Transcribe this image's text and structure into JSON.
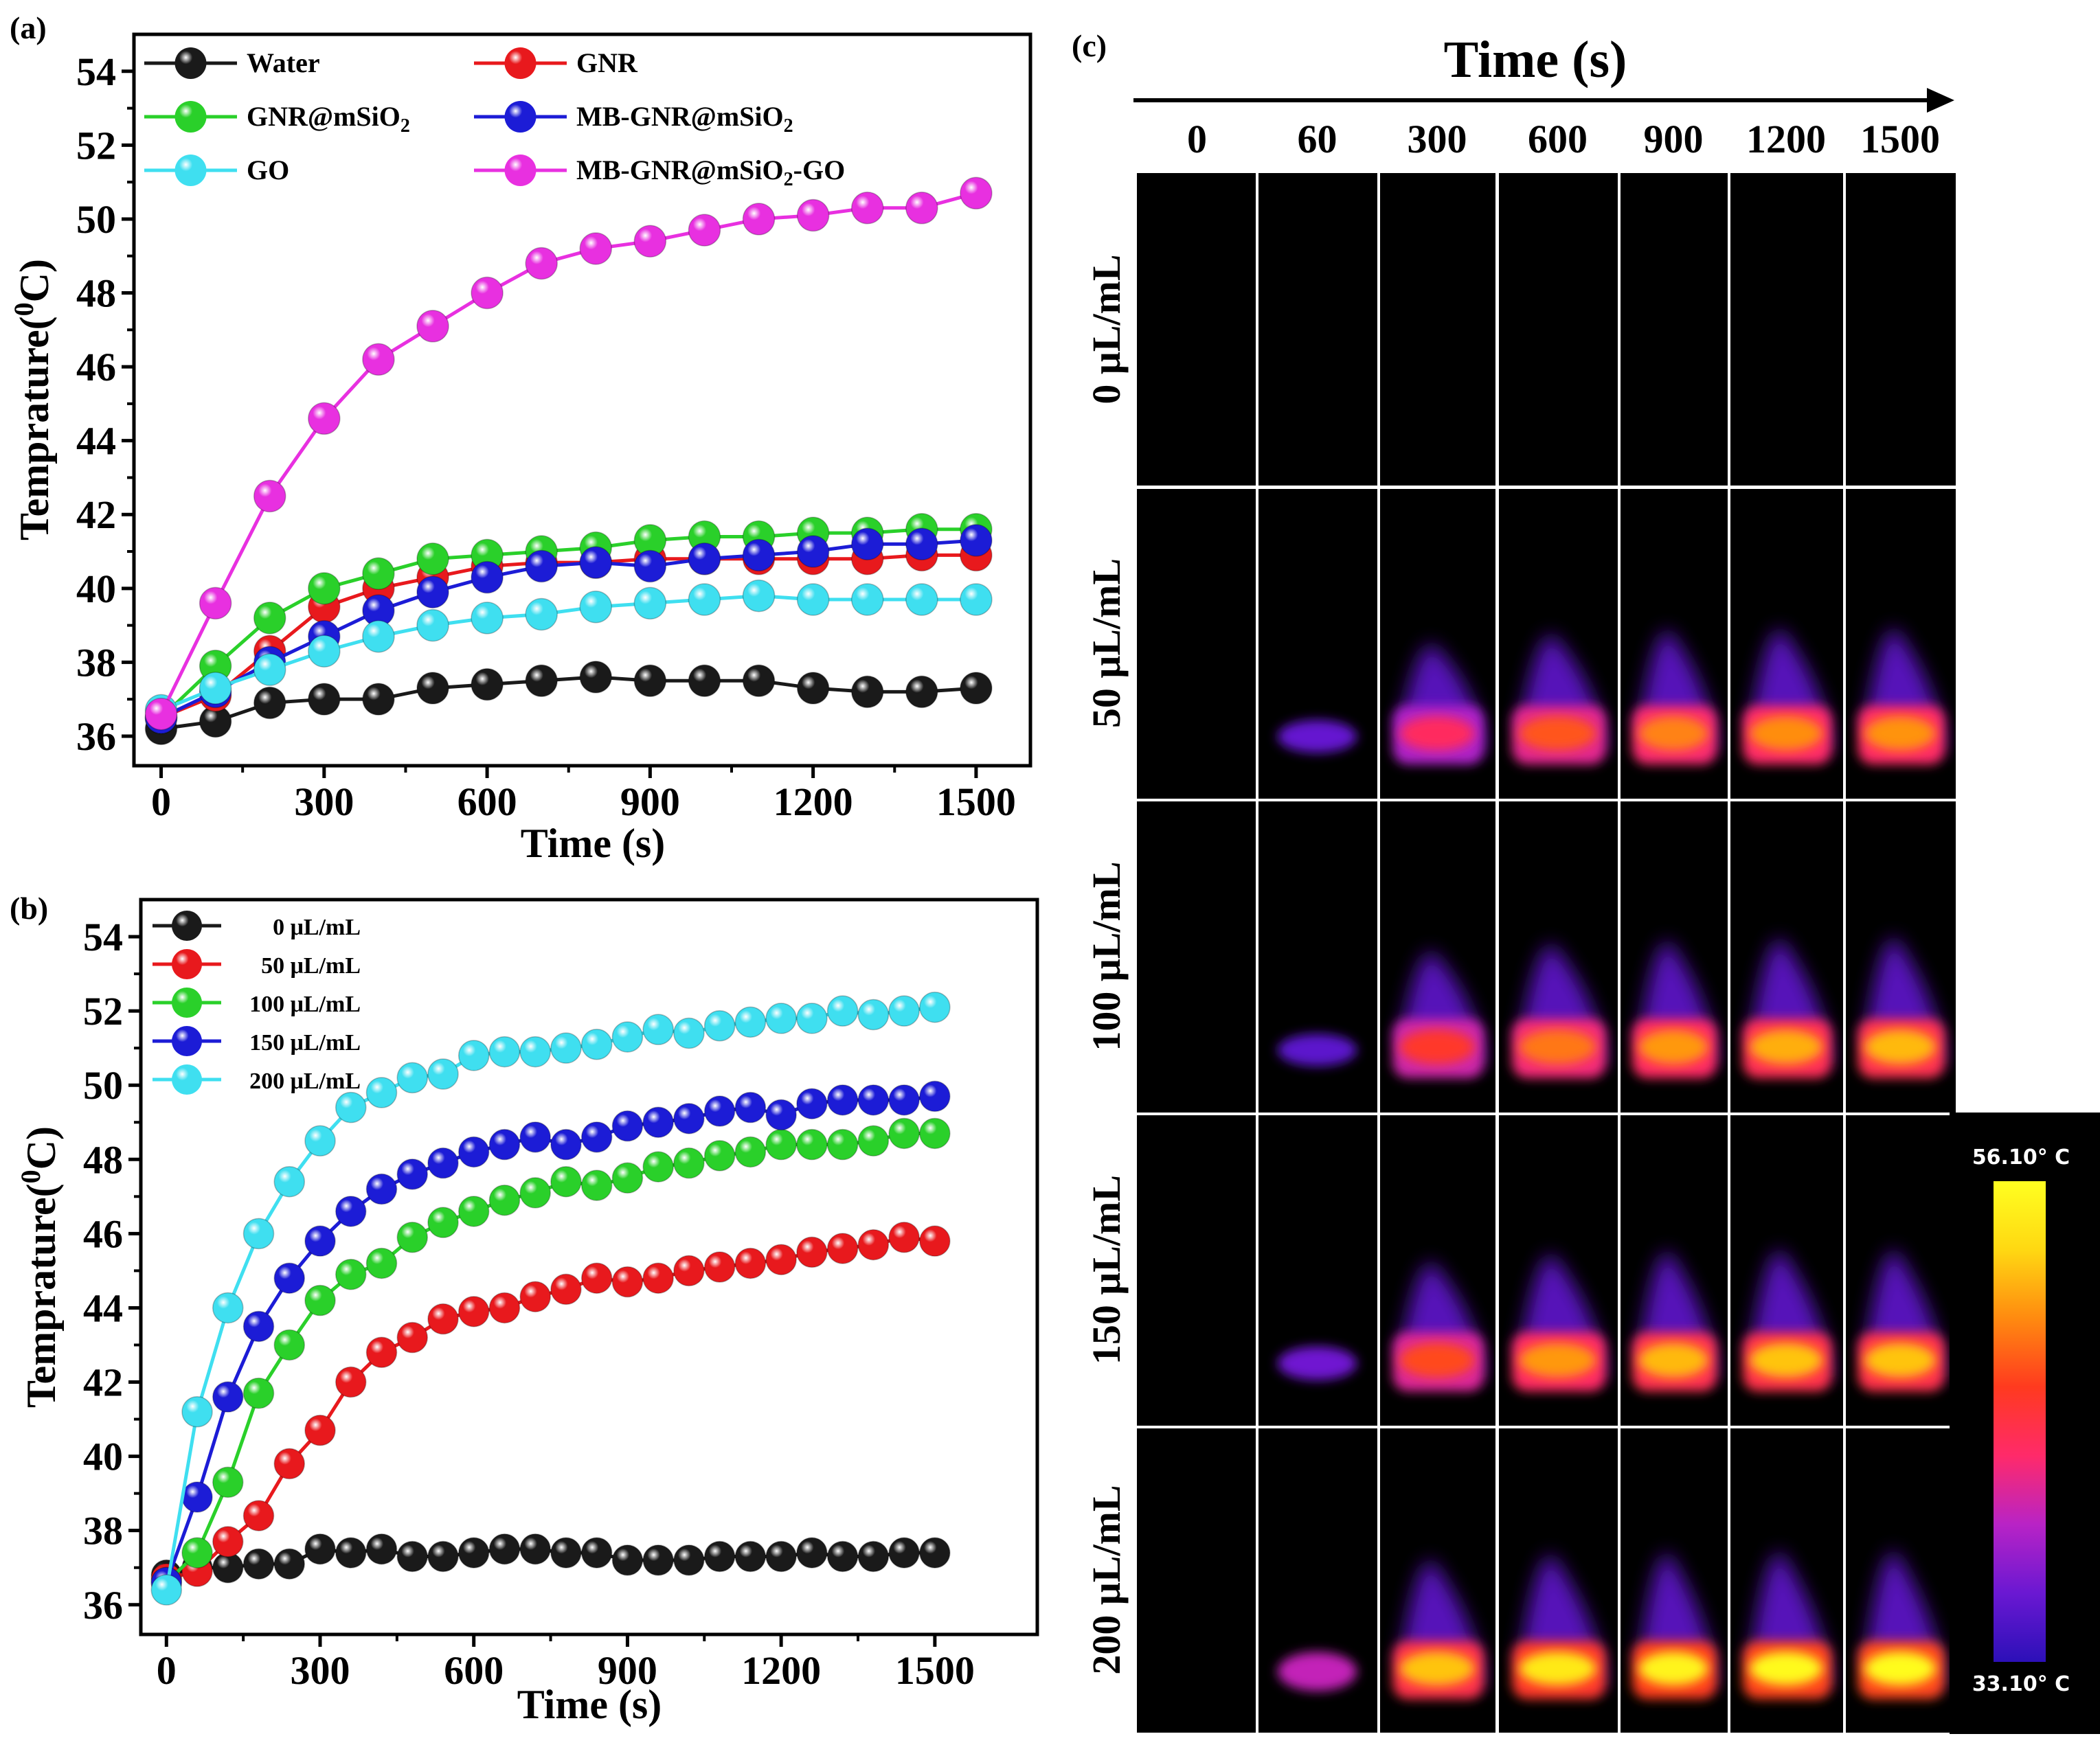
{
  "chart_data": [
    {
      "panel_label": "(a)",
      "type": "line",
      "xlabel": "Time (s)",
      "ylabel_main": "Temprature(",
      "ylabel_sup": "0",
      "ylabel_tail": "C)",
      "xlim": [
        -50,
        1600
      ],
      "ylim": [
        35.2,
        55
      ],
      "xticks": [
        0,
        300,
        600,
        900,
        1200,
        1500
      ],
      "yticks": [
        36,
        38,
        40,
        42,
        44,
        46,
        48,
        50,
        52,
        54
      ],
      "legend_position": "top, two columns",
      "x": [
        0,
        100,
        200,
        300,
        400,
        500,
        600,
        700,
        800,
        900,
        1000,
        1100,
        1200,
        1300,
        1400,
        1500
      ],
      "series": [
        {
          "name": "Water",
          "label_parts": [
            "Water",
            "",
            ""
          ],
          "color": "#1a1a1a",
          "values": [
            36.2,
            36.4,
            36.9,
            37.0,
            37.0,
            37.3,
            37.4,
            37.5,
            37.6,
            37.5,
            37.5,
            37.5,
            37.3,
            37.2,
            37.2,
            37.3
          ]
        },
        {
          "name": "GNR",
          "label_parts": [
            "GNR",
            "",
            ""
          ],
          "color": "#e8191d",
          "values": [
            36.5,
            37.1,
            38.3,
            39.5,
            40.0,
            40.3,
            40.6,
            40.7,
            40.7,
            40.8,
            40.8,
            40.8,
            40.8,
            40.8,
            40.9,
            40.9
          ]
        },
        {
          "name": "GNR@mSiO2",
          "label_parts": [
            "GNR@mSiO",
            "2",
            ""
          ],
          "color": "#2ad02a",
          "values": [
            36.5,
            37.9,
            39.2,
            40.0,
            40.4,
            40.8,
            40.9,
            41.0,
            41.1,
            41.3,
            41.4,
            41.4,
            41.5,
            41.5,
            41.6,
            41.6
          ]
        },
        {
          "name": "MB-GNR@mSiO2",
          "label_parts": [
            "MB-GNR@mSiO",
            "2",
            ""
          ],
          "color": "#1c1cd6",
          "values": [
            36.5,
            37.2,
            38.0,
            38.7,
            39.4,
            39.9,
            40.3,
            40.6,
            40.7,
            40.6,
            40.8,
            40.9,
            41.0,
            41.2,
            41.2,
            41.3
          ]
        },
        {
          "name": "GO",
          "label_parts": [
            "GO",
            "",
            ""
          ],
          "color": "#3fdff0",
          "values": [
            36.7,
            37.3,
            37.8,
            38.3,
            38.7,
            39.0,
            39.2,
            39.3,
            39.5,
            39.6,
            39.7,
            39.8,
            39.7,
            39.7,
            39.7,
            39.7
          ]
        },
        {
          "name": "MB-GNR@mSiO2-GO",
          "label_parts": [
            "MB-GNR@mSiO",
            "2",
            "-GO"
          ],
          "color": "#e830e0",
          "values": [
            36.6,
            39.6,
            42.5,
            44.6,
            46.2,
            47.1,
            48.0,
            48.8,
            49.2,
            49.4,
            49.7,
            50.0,
            50.1,
            50.3,
            50.3,
            50.7
          ]
        }
      ]
    },
    {
      "panel_label": "(b)",
      "type": "line",
      "xlabel": "Time (s)",
      "ylabel_main": "Temprature(",
      "ylabel_sup": "0",
      "ylabel_tail": "C)",
      "xlim": [
        -50,
        1700
      ],
      "ylim": [
        35.2,
        55
      ],
      "xticks": [
        0,
        300,
        600,
        900,
        1200,
        1500
      ],
      "yticks": [
        36,
        38,
        40,
        42,
        44,
        46,
        48,
        50,
        52,
        54
      ],
      "legend_position": "top-left",
      "x": [
        0,
        60,
        120,
        180,
        240,
        300,
        360,
        420,
        480,
        540,
        600,
        660,
        720,
        780,
        840,
        900,
        960,
        1020,
        1080,
        1140,
        1200,
        1260,
        1320,
        1380,
        1440,
        1500
      ],
      "series": [
        {
          "name": "0 μL/mL",
          "color": "#1a1a1a",
          "values": [
            36.8,
            37.0,
            37.0,
            37.1,
            37.1,
            37.5,
            37.4,
            37.5,
            37.3,
            37.3,
            37.4,
            37.5,
            37.5,
            37.4,
            37.4,
            37.2,
            37.2,
            37.2,
            37.3,
            37.3,
            37.3,
            37.4,
            37.3,
            37.3,
            37.4,
            37.4
          ]
        },
        {
          "name": "50 μL/mL",
          "color": "#e8191d",
          "values": [
            36.7,
            36.9,
            37.7,
            38.4,
            39.8,
            40.7,
            42.0,
            42.8,
            43.2,
            43.7,
            43.9,
            44.0,
            44.3,
            44.5,
            44.8,
            44.7,
            44.8,
            45.0,
            45.1,
            45.2,
            45.3,
            45.5,
            45.6,
            45.7,
            45.9,
            45.8
          ]
        },
        {
          "name": "100 μL/mL",
          "color": "#2ad02a",
          "values": [
            36.6,
            37.4,
            39.3,
            41.7,
            43.0,
            44.2,
            44.9,
            45.2,
            45.9,
            46.3,
            46.6,
            46.9,
            47.1,
            47.4,
            47.3,
            47.5,
            47.8,
            47.9,
            48.1,
            48.2,
            48.4,
            48.4,
            48.4,
            48.5,
            48.7,
            48.7
          ]
        },
        {
          "name": "150 μL/mL",
          "color": "#1c1cd6",
          "values": [
            36.6,
            38.9,
            41.6,
            43.5,
            44.8,
            45.8,
            46.6,
            47.2,
            47.6,
            47.9,
            48.2,
            48.4,
            48.6,
            48.4,
            48.6,
            48.9,
            49.0,
            49.1,
            49.3,
            49.4,
            49.2,
            49.5,
            49.6,
            49.6,
            49.6,
            49.7
          ]
        },
        {
          "name": "200 μL/mL",
          "color": "#3fdff0",
          "values": [
            36.4,
            41.2,
            44.0,
            46.0,
            47.4,
            48.5,
            49.4,
            49.8,
            50.2,
            50.3,
            50.8,
            50.9,
            50.9,
            51.0,
            51.1,
            51.3,
            51.5,
            51.4,
            51.6,
            51.7,
            51.8,
            51.8,
            52.0,
            51.9,
            52.0,
            52.1
          ]
        }
      ]
    }
  ],
  "panel_c": {
    "label": "(c)",
    "axis_title": "Time (s)",
    "time_labels": [
      "0",
      "60",
      "300",
      "600",
      "900",
      "1200",
      "1500"
    ],
    "row_labels": [
      "0 μL/mL",
      "50 μL/mL",
      "100 μL/mL",
      "150 μL/mL",
      "200 μL/mL"
    ],
    "heat_intensity": [
      [
        0,
        0,
        0,
        0,
        0,
        0,
        0
      ],
      [
        0,
        0.12,
        0.45,
        0.62,
        0.7,
        0.72,
        0.73
      ],
      [
        0,
        0.1,
        0.55,
        0.68,
        0.74,
        0.78,
        0.8
      ],
      [
        0,
        0.14,
        0.6,
        0.74,
        0.8,
        0.82,
        0.82
      ],
      [
        0,
        0.28,
        0.82,
        0.92,
        0.96,
        0.98,
        0.99
      ]
    ],
    "colorbar": {
      "max_label": "56.10° C",
      "min_label": "33.10° C",
      "min_value": 33.1,
      "max_value": 56.1,
      "stops": [
        "#2c10b8",
        "#6a18d2",
        "#b823c6",
        "#ff2a6a",
        "#ff3a1f",
        "#ff8a10",
        "#ffd812",
        "#ffff20"
      ]
    }
  }
}
